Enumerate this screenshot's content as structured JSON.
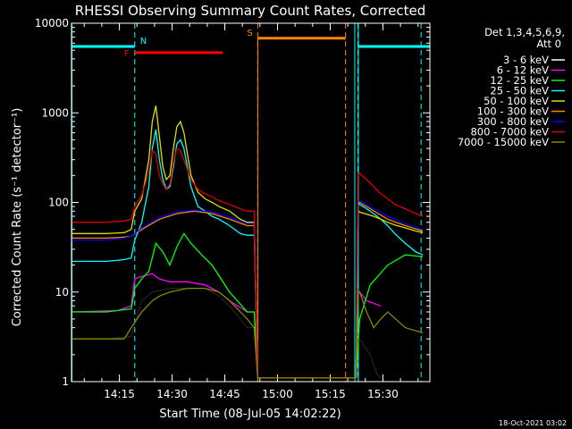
{
  "chart_data": {
    "type": "line",
    "title": "RHESSI Observing Summary Count Rates, Corrected",
    "xlabel": "Start Time (08-Jul-05 14:02:22)",
    "ylabel": "Corrected Count Rate (s⁻¹ detector⁻¹)",
    "yscale": "log",
    "ylim": [
      1,
      10000
    ],
    "xlim_minutes": [
      0,
      102
    ],
    "xtick_minutes": [
      13.63,
      28.63,
      43.63,
      58.63,
      73.63,
      88.63
    ],
    "xtick_labels": [
      "14:15",
      "14:30",
      "14:45",
      "15:00",
      "15:15",
      "15:30"
    ],
    "ytick_values": [
      1,
      10,
      100,
      1000,
      10000
    ],
    "ytick_labels": [
      "1",
      "10",
      "100",
      "1000",
      "10000"
    ],
    "legend_header": [
      "Det 1,3,4,5,6,9,",
      "Att 0"
    ],
    "legend_position": "right",
    "series": [
      {
        "name": "3 - 6 keV",
        "color": "#000000",
        "x": [
          0,
          10,
          17,
          20,
          23,
          28,
          33,
          38,
          42,
          45,
          50,
          52,
          53,
          81,
          81.5,
          82,
          85,
          87,
          88
        ],
        "y": [
          3,
          3,
          3.2,
          8,
          10,
          11,
          11,
          11,
          9,
          7,
          4,
          4,
          1.1,
          1.1,
          3,
          3,
          2,
          1.2,
          1.1
        ]
      },
      {
        "name": "6 - 12 keV",
        "color": "#ff00ff",
        "x": [
          0,
          13,
          17,
          18,
          20,
          23,
          25,
          28,
          33,
          38,
          42,
          45,
          50,
          52,
          53,
          81,
          81.5,
          82,
          84,
          88
        ],
        "y": [
          6,
          6.2,
          7,
          14,
          15,
          16,
          14,
          13,
          13,
          12,
          10,
          8,
          6,
          6,
          1.1,
          1.1,
          10,
          10,
          8,
          7
        ]
      },
      {
        "name": "12 - 25 keV",
        "color": "#00ff00",
        "x": [
          0,
          10,
          17,
          18,
          20,
          22,
          24,
          26,
          28,
          30,
          32,
          34,
          37,
          40,
          45,
          50,
          52,
          53,
          81,
          82,
          85,
          90,
          95,
          99,
          100
        ],
        "y": [
          6,
          6,
          6.5,
          11,
          14,
          17,
          35,
          28,
          20,
          32,
          45,
          35,
          26,
          20,
          10,
          6,
          6,
          1.1,
          1.1,
          5,
          12,
          20,
          26,
          25,
          25
        ]
      },
      {
        "name": "25 - 50 keV",
        "color": "#00ffff",
        "x": [
          0,
          10,
          15,
          17,
          18,
          20,
          22,
          23,
          24,
          25,
          26,
          27,
          28,
          29,
          30,
          31,
          32,
          34,
          36,
          38,
          40,
          42,
          45,
          48,
          50,
          52,
          53,
          81,
          81.5,
          82,
          84,
          86,
          88,
          90,
          92,
          95,
          98,
          100
        ],
        "y": [
          22,
          22,
          23,
          24,
          38,
          60,
          150,
          400,
          650,
          300,
          180,
          140,
          150,
          250,
          450,
          500,
          400,
          150,
          90,
          80,
          70,
          65,
          55,
          45,
          43,
          43,
          1.1,
          1.1,
          100,
          95,
          85,
          75,
          65,
          55,
          45,
          35,
          28,
          26
        ]
      },
      {
        "name": "50 - 100 keV",
        "color": "#dddd00",
        "x": [
          0,
          10,
          15,
          17,
          18,
          20,
          22,
          23,
          24,
          25,
          26,
          27,
          28,
          29,
          30,
          31,
          32,
          34,
          36,
          38,
          40,
          42,
          45,
          48,
          50,
          52,
          53,
          81,
          81.5,
          82,
          84,
          86,
          88,
          90,
          92,
          95,
          98,
          100
        ],
        "y": [
          45,
          45,
          46,
          50,
          80,
          110,
          300,
          800,
          1200,
          550,
          250,
          180,
          200,
          400,
          700,
          800,
          600,
          200,
          130,
          110,
          100,
          90,
          80,
          65,
          60,
          60,
          1.1,
          1.1,
          80,
          78,
          74,
          70,
          65,
          60,
          56,
          52,
          48,
          46
        ]
      },
      {
        "name": "100 - 300 keV",
        "color": "#ff8800",
        "x": [
          0,
          10,
          15,
          17,
          20,
          25,
          30,
          35,
          40,
          45,
          50,
          52,
          53,
          81,
          81.5,
          82,
          85,
          90,
          95,
          100
        ],
        "y": [
          40,
          40,
          41,
          42,
          50,
          65,
          75,
          80,
          75,
          65,
          55,
          55,
          1.1,
          1.1,
          100,
          100,
          85,
          65,
          55,
          48
        ]
      },
      {
        "name": "300 - 800 keV",
        "color": "#0000ff",
        "x": [
          0,
          10,
          15,
          17,
          20,
          25,
          30,
          35,
          40,
          45,
          50,
          52,
          53,
          81,
          81.5,
          82,
          85,
          90,
          95,
          100
        ],
        "y": [
          38,
          38,
          40,
          42,
          52,
          68,
          78,
          82,
          78,
          68,
          58,
          58,
          1.1,
          1.1,
          105,
          105,
          90,
          70,
          58,
          50
        ]
      },
      {
        "name": "800 - 7000 keV",
        "color": "#dd0000",
        "x": [
          0,
          10,
          15,
          17,
          18,
          20,
          22,
          23,
          24,
          25,
          26,
          27,
          28,
          29,
          30,
          31,
          32,
          34,
          36,
          38,
          40,
          42,
          45,
          48,
          50,
          52,
          53,
          81,
          81.5,
          82,
          84,
          86,
          88,
          90,
          92,
          95,
          98,
          100
        ],
        "y": [
          60,
          60,
          62,
          65,
          90,
          120,
          220,
          380,
          350,
          200,
          160,
          140,
          160,
          280,
          400,
          380,
          300,
          180,
          140,
          125,
          115,
          105,
          95,
          85,
          80,
          80,
          1.1,
          1.1,
          200,
          210,
          180,
          150,
          125,
          110,
          95,
          85,
          75,
          70
        ]
      },
      {
        "name": "7000 - 15000 keV",
        "color": "#888800",
        "x": [
          0,
          10,
          15,
          17,
          20,
          23,
          25,
          28,
          33,
          38,
          42,
          45,
          50,
          52,
          53,
          81,
          81.5,
          82,
          84,
          86,
          88,
          90,
          95,
          100
        ],
        "y": [
          3,
          3,
          3,
          4,
          6,
          8,
          9,
          10,
          11,
          11,
          10,
          8,
          5,
          4,
          1.1,
          1.1,
          10,
          10,
          6,
          4,
          5,
          6,
          4,
          3.5
        ]
      }
    ],
    "overlays": {
      "N": {
        "label": "N",
        "color": "#00ffff",
        "level": 5500,
        "segments": [
          [
            0,
            18
          ],
          [
            81.5,
            102
          ]
        ],
        "vlines": [
          18,
          81.5,
          99.5
        ]
      },
      "F": {
        "label": "F",
        "color": "#ff0000",
        "level": 4700,
        "segments": [
          [
            18,
            43
          ]
        ]
      },
      "S": {
        "label": "S",
        "color": "#ff8800",
        "level": 6800,
        "segments": [
          [
            53,
            78
          ]
        ],
        "vlines": [
          53,
          78
        ]
      },
      "cyan_solid": [
        0,
        80.5,
        81.5
      ]
    },
    "footer_date": "18-Oct-2021 03:02"
  }
}
